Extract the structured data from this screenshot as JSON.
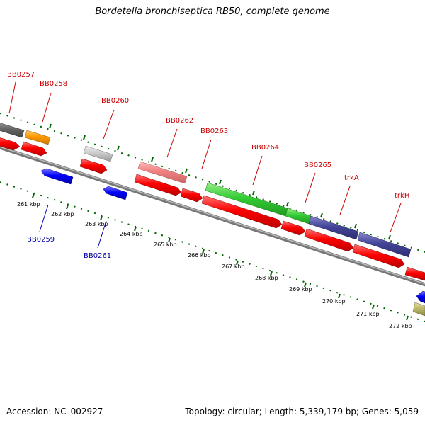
{
  "title": "Bordetella bronchiseptica RB50, complete genome",
  "footer": {
    "accession": "Accession: NC_002927",
    "topology": "Topology: circular; Length: 5,339,179 bp; Genes: 5,059"
  },
  "colors": {
    "forward_label": "#cc0000",
    "reverse_label": "#0000aa",
    "backbone": "#999999",
    "tick": "#006600"
  },
  "kbp_ticks": [
    "261 kbp",
    "262 kbp",
    "263 kbp",
    "264 kbp",
    "265 kbp",
    "266 kbp",
    "267 kbp",
    "268 kbp",
    "269 kbp",
    "270 kbp",
    "271 kbp",
    "272 kbp"
  ],
  "gene_labels": [
    {
      "id": "BB0257",
      "strand": "forward"
    },
    {
      "id": "BB0258",
      "strand": "forward"
    },
    {
      "id": "BB0259",
      "strand": "reverse"
    },
    {
      "id": "BB0260",
      "strand": "forward"
    },
    {
      "id": "BB0261",
      "strand": "reverse"
    },
    {
      "id": "BB0262",
      "strand": "forward"
    },
    {
      "id": "BB0263",
      "strand": "forward"
    },
    {
      "id": "BB0264",
      "strand": "forward"
    },
    {
      "id": "BB0265",
      "strand": "forward"
    },
    {
      "id": "trkA",
      "strand": "forward"
    },
    {
      "id": "trkH",
      "strand": "forward"
    }
  ]
}
